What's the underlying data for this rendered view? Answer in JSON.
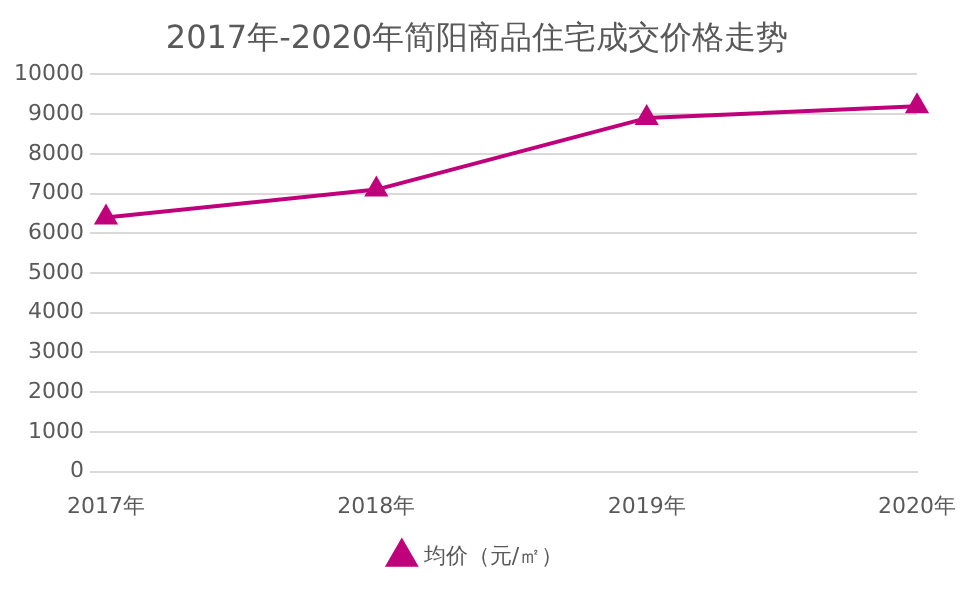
{
  "chart_data": {
    "type": "line",
    "title": "2017年-2020年简阳商品住宅成交价格走势",
    "categories": [
      "2017年",
      "2018年",
      "2019年",
      "2020年"
    ],
    "series": [
      {
        "name": "均价（元/㎡）",
        "color": "#c0007a",
        "values": [
          6400,
          7100,
          8900,
          9200
        ]
      }
    ],
    "ylim": [
      0,
      10000
    ],
    "yticks": [
      0,
      1000,
      2000,
      3000,
      4000,
      5000,
      6000,
      7000,
      8000,
      9000,
      10000
    ],
    "grid": "y",
    "legend": "bottom",
    "marker": "triangle",
    "line_style": "solid"
  }
}
